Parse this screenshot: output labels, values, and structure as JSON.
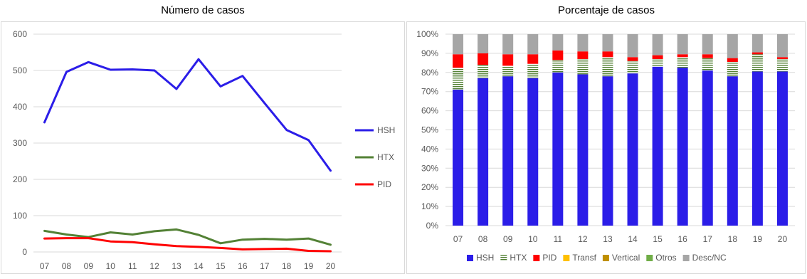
{
  "chart_data": [
    {
      "type": "line",
      "title": "Número de casos",
      "categories": [
        "07",
        "08",
        "09",
        "10",
        "11",
        "12",
        "13",
        "14",
        "15",
        "16",
        "17",
        "18",
        "19",
        "20"
      ],
      "ylim": [
        0,
        600
      ],
      "yticks": [
        "0",
        "100",
        "200",
        "300",
        "400",
        "500",
        "600"
      ],
      "grid": true,
      "legend_position": "right",
      "series": [
        {
          "name": "HSH",
          "color": "#2b1de8",
          "values": [
            357,
            496,
            523,
            502,
            503,
            500,
            449,
            531,
            456,
            485,
            410,
            336,
            308,
            224
          ]
        },
        {
          "name": "HTX",
          "color": "#538135",
          "values": [
            58,
            48,
            41,
            54,
            48,
            57,
            62,
            47,
            24,
            34,
            36,
            34,
            37,
            20
          ]
        },
        {
          "name": "PID",
          "color": "#ff0000",
          "values": [
            37,
            38,
            38,
            29,
            27,
            21,
            16,
            14,
            11,
            7,
            8,
            9,
            3,
            2
          ]
        }
      ]
    },
    {
      "type": "bar",
      "stacked": true,
      "title": "Porcentaje de casos",
      "categories": [
        "07",
        "08",
        "09",
        "10",
        "11",
        "12",
        "13",
        "14",
        "15",
        "16",
        "17",
        "18",
        "19",
        "20"
      ],
      "ylim": [
        0,
        100
      ],
      "yticks": [
        "0%",
        "10%",
        "20%",
        "30%",
        "40%",
        "50%",
        "60%",
        "70%",
        "80%",
        "90%",
        "100%"
      ],
      "grid": true,
      "legend_position": "bottom",
      "series": [
        {
          "name": "HSH",
          "color": "#2b1de8",
          "values": [
            71,
            77,
            78,
            77,
            80,
            79,
            78,
            79.5,
            83,
            82.5,
            81,
            78,
            80.5,
            80.5
          ]
        },
        {
          "name": "HTX",
          "color": "#538135",
          "values": [
            11.5,
            7,
            5.5,
            7.5,
            6.5,
            8,
            10,
            6.5,
            4,
            5.5,
            6.5,
            7.5,
            9,
            6.5
          ]
        },
        {
          "name": "PID",
          "color": "#ff0000",
          "values": [
            7,
            6,
            6,
            5,
            5,
            4,
            3,
            2,
            2,
            1.5,
            2,
            2,
            1,
            1
          ]
        },
        {
          "name": "Transf",
          "color": "#ffc000",
          "values": [
            0,
            0,
            0,
            0,
            0,
            0,
            0,
            0,
            0,
            0,
            0,
            0,
            0,
            0
          ]
        },
        {
          "name": "Vertical",
          "color": "#bf8f00",
          "values": [
            0,
            0,
            0,
            0,
            0,
            0,
            0,
            0,
            0,
            0,
            0,
            0,
            0,
            0
          ]
        },
        {
          "name": "Otros",
          "color": "#70ad47",
          "values": [
            0,
            0,
            0,
            0,
            0,
            0,
            0,
            0,
            0,
            0,
            0,
            0,
            0,
            0
          ]
        },
        {
          "name": "Desc/NC",
          "color": "#a6a6a6",
          "values": [
            10.5,
            10,
            10.5,
            10.5,
            8.5,
            9,
            9,
            12,
            11,
            10.5,
            10.5,
            12.5,
            9.5,
            12
          ]
        }
      ]
    }
  ]
}
